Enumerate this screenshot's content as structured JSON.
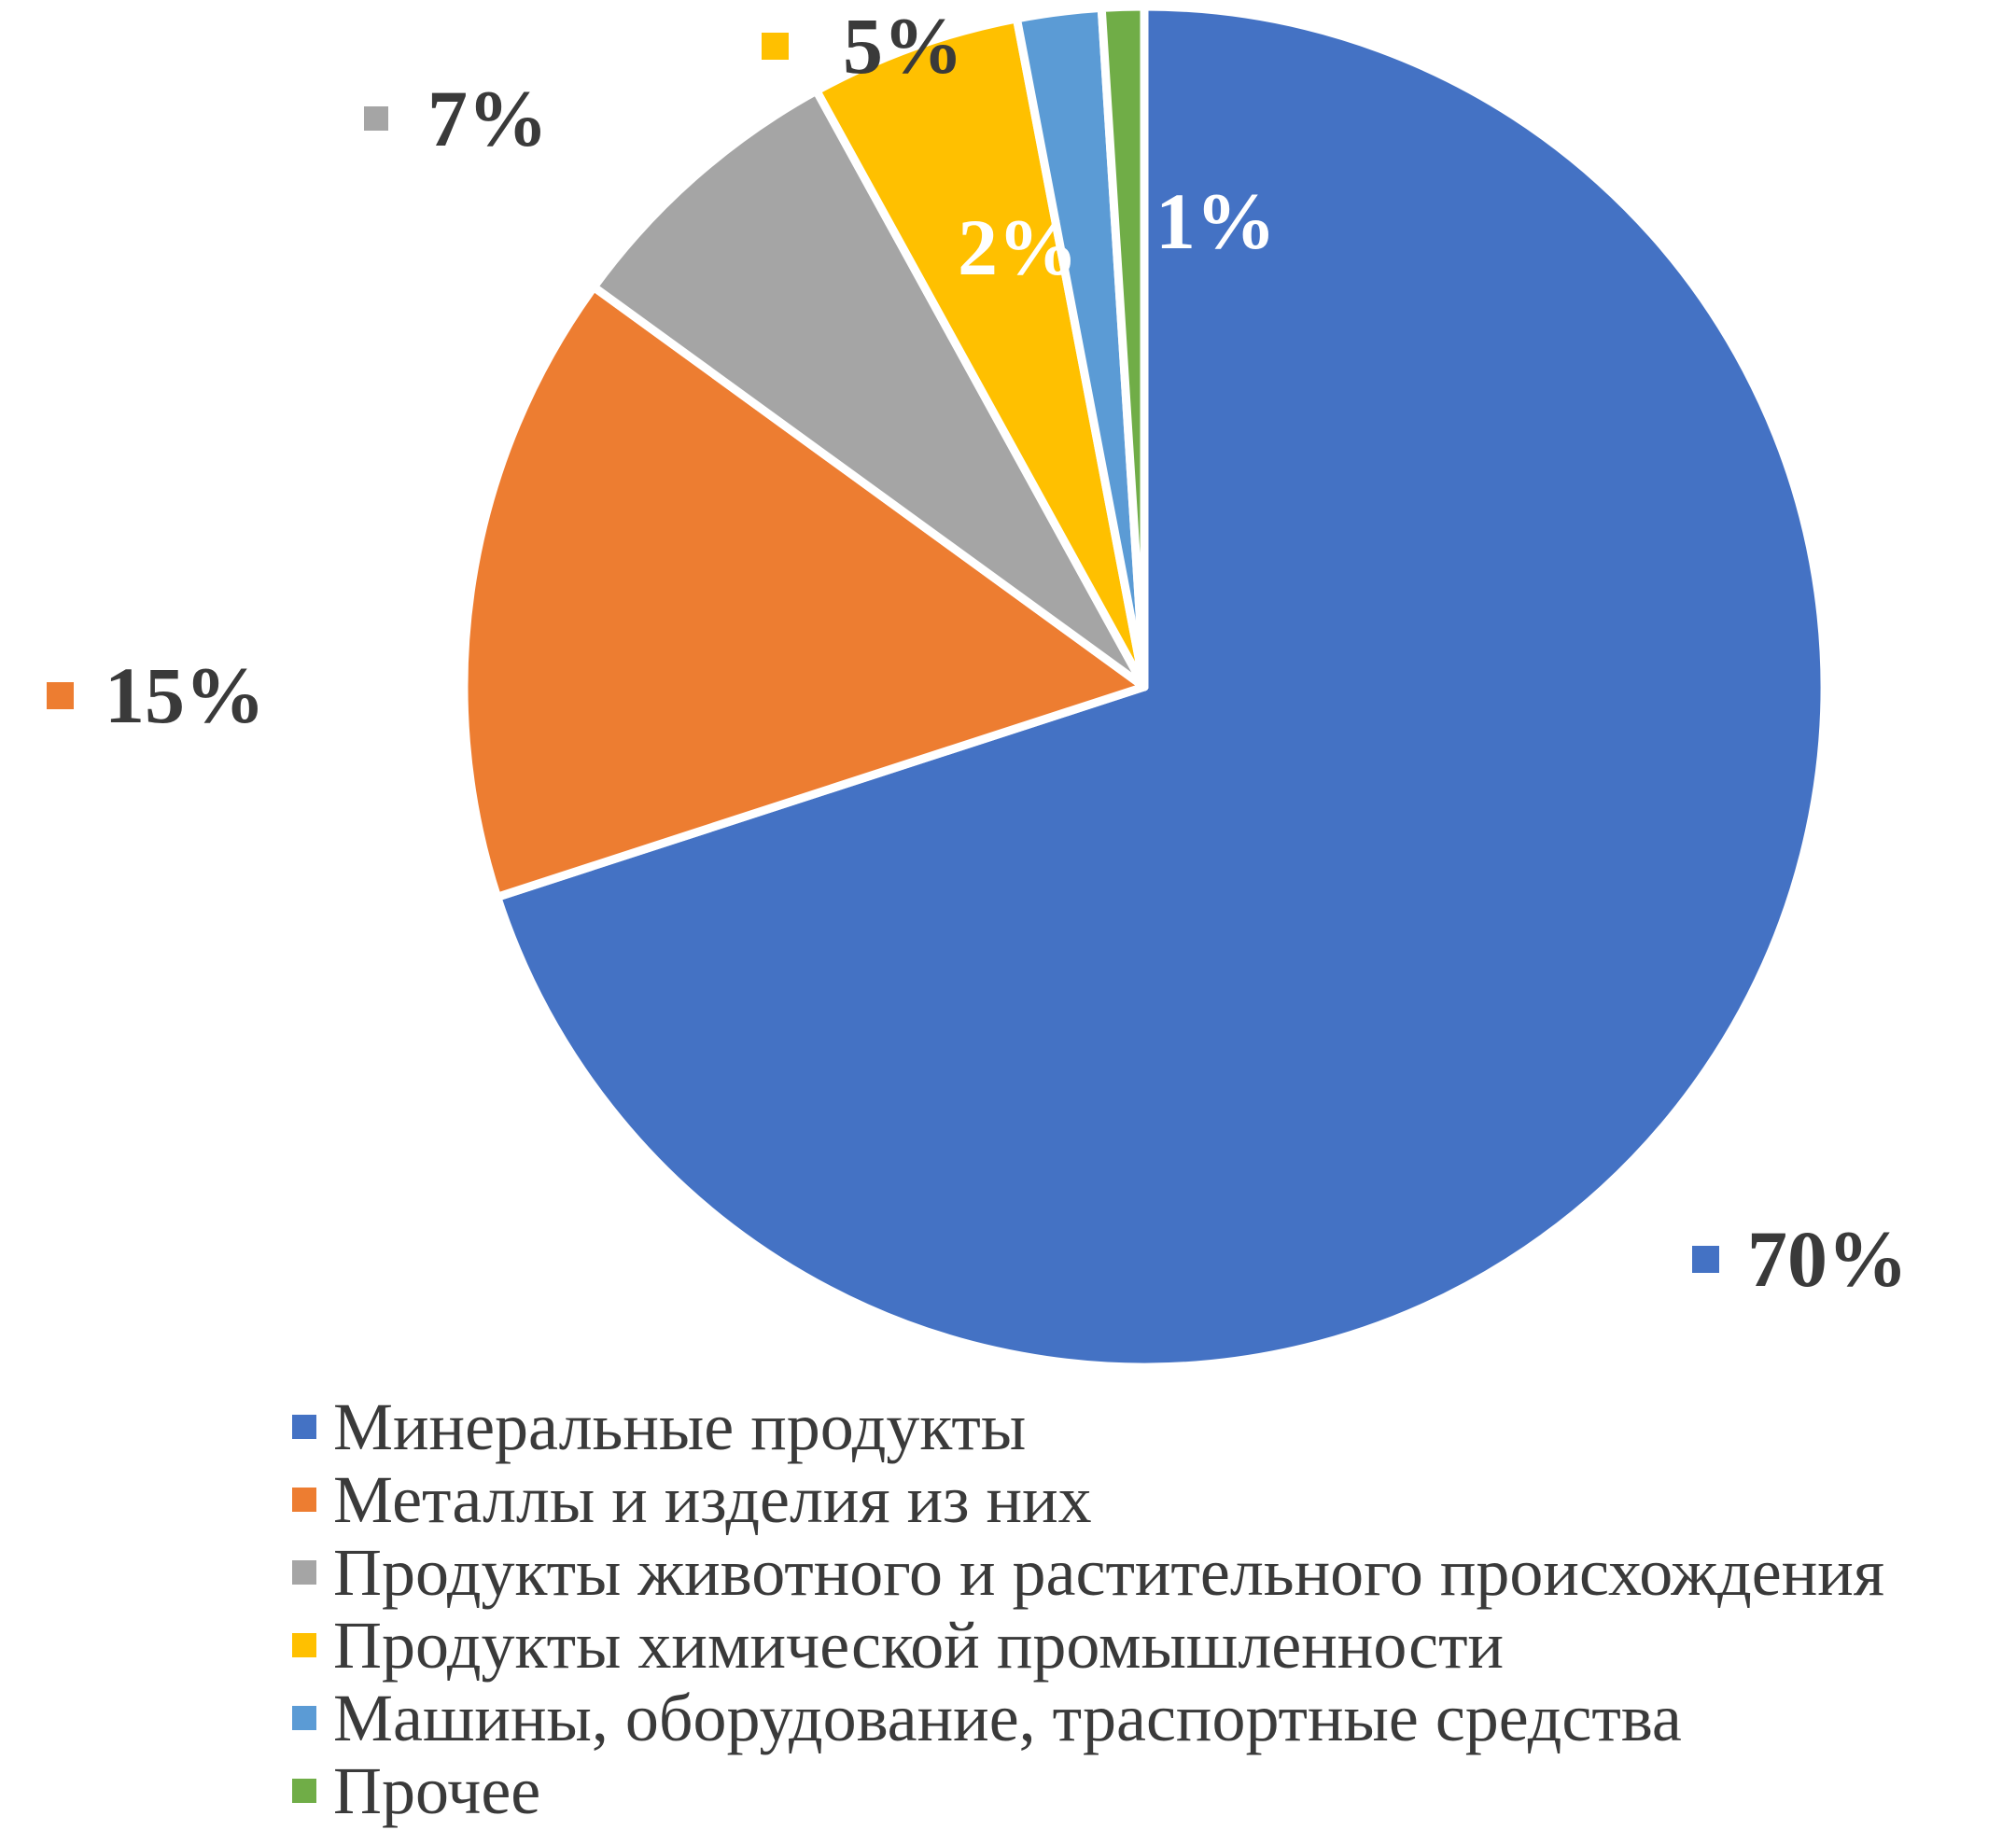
{
  "chart_data": {
    "type": "pie",
    "title": "",
    "categories": [
      "Минеральные продукты",
      "Металлы и изделия из них",
      "Продукты животного и растительного происхождения",
      "Продукты химической промышленности",
      "Машины, оборудование, траспортные средства",
      "Прочее"
    ],
    "values": [
      70,
      15,
      7,
      5,
      2,
      1
    ],
    "data_labels": [
      "70%",
      "15%",
      "7%",
      "5%",
      "2%",
      "1%"
    ],
    "colors": [
      "#4472C4",
      "#ED7D31",
      "#A5A5A5",
      "#FFC000",
      "#5B9BD5",
      "#70AD47"
    ],
    "start_angle_deg": 0,
    "direction": "clockwise",
    "slice_border_color": "#FFFFFF",
    "label_text_color": "#3A3A3A",
    "inside_label_text_color": "#FFFFFF",
    "legend_position": "bottom-left",
    "background": "#FFFFFF"
  }
}
